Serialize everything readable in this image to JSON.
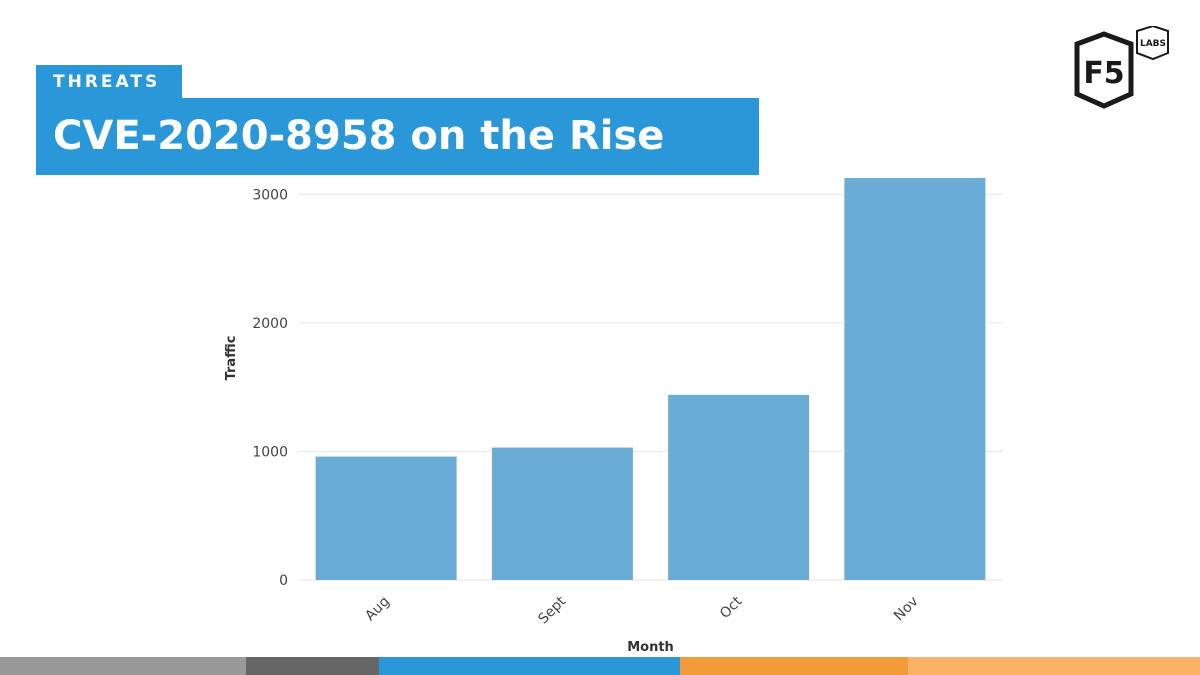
{
  "header": {
    "category": "THREATS",
    "title": "CVE-2020-8958 on the Rise"
  },
  "logo": {
    "main": "F5",
    "sub": "LABS"
  },
  "colors": {
    "accent": "#2a98d8",
    "bar": "#6aacd5",
    "footer": [
      "#999999",
      "#666666",
      "#2a98d8",
      "#f39a39",
      "#fbb36a"
    ]
  },
  "chart_data": {
    "type": "bar",
    "categories": [
      "Aug",
      "Sept",
      "Oct",
      "Nov"
    ],
    "values": [
      960,
      1030,
      1440,
      3160
    ],
    "xlabel": "Month",
    "ylabel": "Traffic",
    "ylim": [
      0,
      3150
    ],
    "yticks": [
      0,
      1000,
      2000,
      3000
    ],
    "grid": true
  }
}
